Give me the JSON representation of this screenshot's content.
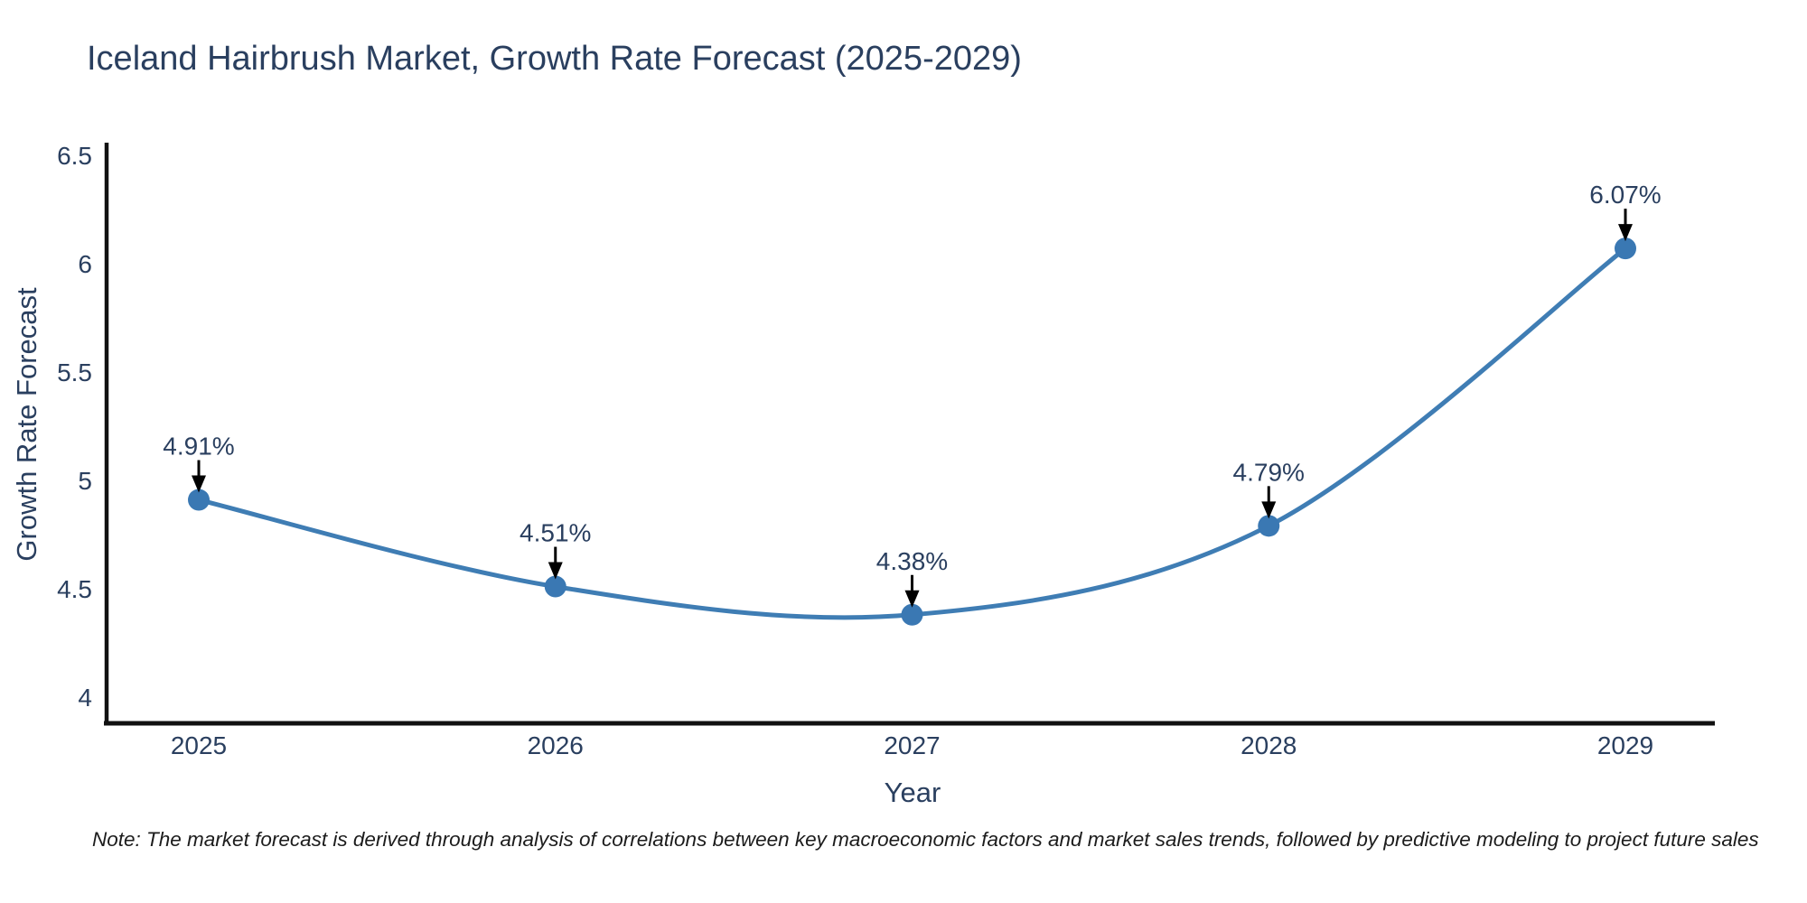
{
  "title": "Iceland Hairbrush Market, Growth Rate Forecast (2025-2029)",
  "note": "Note: The market forecast is derived through analysis of correlations between key macroeconomic factors and market sales trends, followed by predictive modeling to project future sales",
  "chart_data": {
    "type": "line",
    "line_shape": "spline",
    "categories": [
      "2025",
      "2026",
      "2027",
      "2028",
      "2029"
    ],
    "values": [
      4.91,
      4.51,
      4.38,
      4.79,
      6.07
    ],
    "point_labels": [
      "4.91%",
      "4.51%",
      "4.38%",
      "4.79%",
      "6.07%"
    ],
    "title": "Iceland Hairbrush Market, Growth Rate Forecast (2025-2029)",
    "xlabel": "Year",
    "ylabel": "Growth Rate Forecast",
    "yticks": [
      4,
      4.5,
      5,
      5.5,
      6,
      6.5
    ],
    "ylim": [
      3.879,
      6.558
    ],
    "grid": false,
    "legend": "none",
    "markers": true,
    "annotations": "arrow-down-to-point",
    "colors": {
      "line": "#3f7db4",
      "marker": "#3a78b3",
      "axis": "#111111",
      "text": "#2a3f5f",
      "arrow": "#000000",
      "background": "#ffffff"
    }
  }
}
